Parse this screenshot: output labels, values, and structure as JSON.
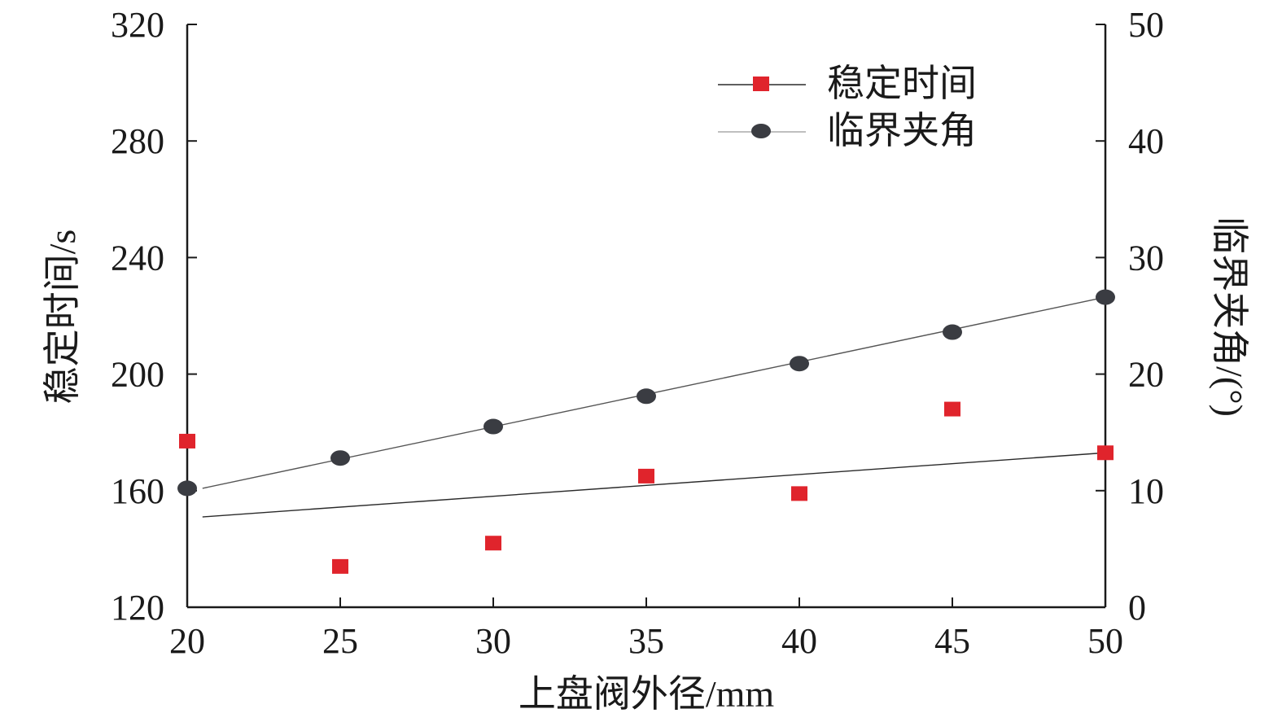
{
  "chart_data": {
    "type": "scatter",
    "xlabel": "上盘阀外径/mm",
    "ylabel_left": "稳定时间/s",
    "ylabel_right": "临界夹角/(°)",
    "x_ticks": [
      20,
      25,
      30,
      35,
      40,
      45,
      50
    ],
    "y_left_ticks": [
      120,
      160,
      200,
      240,
      280,
      320
    ],
    "y_right_ticks": [
      0,
      10,
      20,
      30,
      40,
      50
    ],
    "xlim": [
      20,
      50
    ],
    "ylim_left": [
      120,
      320
    ],
    "ylim_right": [
      0,
      50
    ],
    "grid": false,
    "legend_position": "top-right",
    "series": [
      {
        "name": "稳定时间",
        "axis": "left",
        "marker": "square",
        "color": "#e0242c",
        "x": [
          20,
          25,
          30,
          35,
          40,
          45,
          50
        ],
        "y": [
          177,
          134,
          142,
          165,
          159,
          188,
          173
        ],
        "trendline": {
          "x": [
            20.5,
            50
          ],
          "y": [
            151,
            173
          ]
        }
      },
      {
        "name": "临界夹角",
        "axis": "right",
        "marker": "circle",
        "color": "#3a3c42",
        "x": [
          20,
          25,
          30,
          35,
          40,
          45,
          50
        ],
        "y": [
          10.2,
          12.8,
          15.5,
          18.1,
          20.9,
          23.6,
          26.6
        ],
        "trendline": {
          "x": [
            20.5,
            50
          ],
          "y": [
            10.2,
            26.6
          ]
        }
      }
    ]
  }
}
